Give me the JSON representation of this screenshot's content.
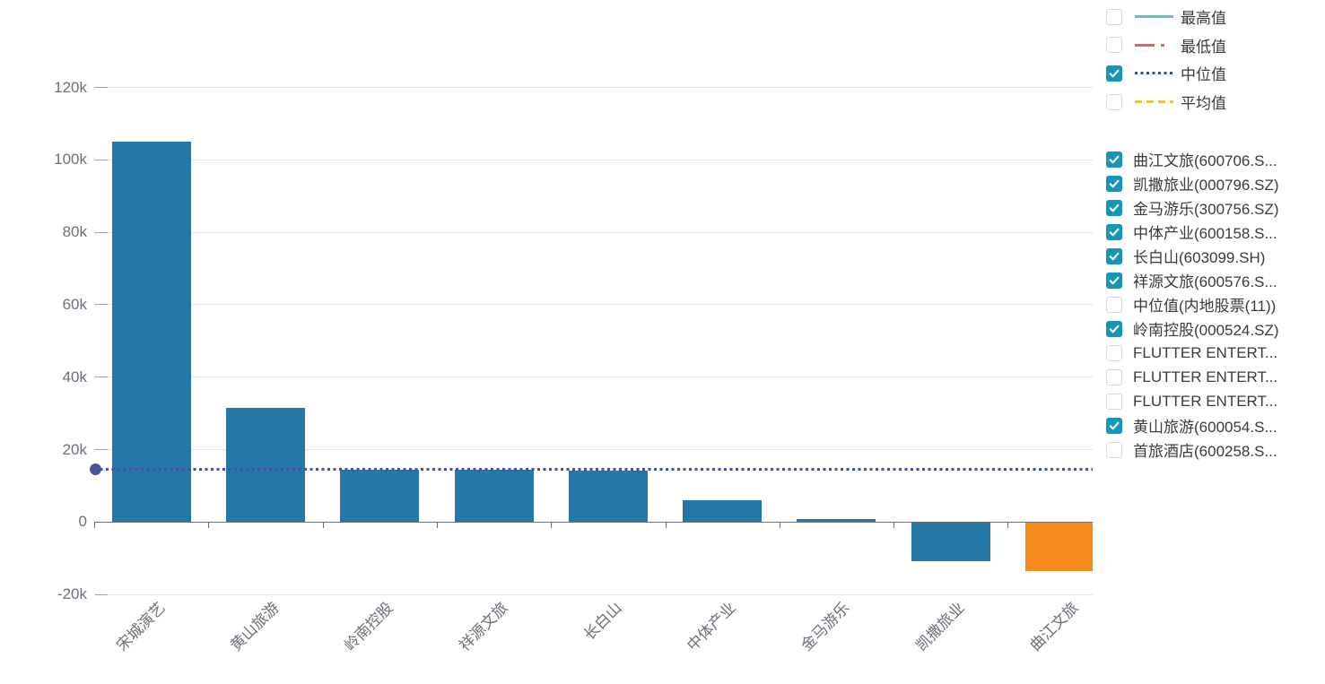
{
  "colors": {
    "bar_blue": "#2577a8",
    "bar_orange": "#f68a1d",
    "median_line": "#4a4f9c",
    "median_dot": "#4a5596",
    "grid_line": "#e0e6f1",
    "axis_line": "#6E7079",
    "ytick_mark": "#9aa0ab",
    "axis_label": "#6E7079",
    "legend_text": "#3a3a3a",
    "checkbox_checked": "#1496b6",
    "checkbox_border": "#d9d9d9"
  },
  "chart_data": {
    "type": "bar",
    "categories": [
      "宋城演艺",
      "黄山旅游",
      "岭南控股",
      "祥源文旅",
      "长白山",
      "中体产业",
      "金马游乐",
      "凯撒旅业",
      "曲江文旅"
    ],
    "values": [
      105000,
      31500,
      14300,
      14200,
      14000,
      6000,
      800,
      -10600,
      -13500
    ],
    "bar_default_color": "#2577a8",
    "bar_color_overrides": {
      "8": "#f68a1d"
    },
    "reference_lines": [
      {
        "name": "中位值",
        "value": 14500,
        "style": "dotted",
        "color": "#4a4f9c",
        "start_dot": true
      }
    ],
    "y_axis": {
      "tick_labels": [
        "120k",
        "100k",
        "80k",
        "60k",
        "40k",
        "20k",
        "0",
        "-20k"
      ],
      "tick_values": [
        120000,
        100000,
        80000,
        60000,
        40000,
        20000,
        0,
        -20000
      ],
      "range": [
        -20000,
        120000
      ]
    },
    "x_label_rotation": -45,
    "grid": true,
    "legend_position": "right"
  },
  "legend_stats": {
    "items": [
      {
        "label": "最高值",
        "checked": false,
        "line_style": "solid",
        "color": "#5fc5c1"
      },
      {
        "label": "最低值",
        "checked": false,
        "line_style": "dashdot",
        "color": "#e2615e"
      },
      {
        "label": "中位值",
        "checked": true,
        "line_style": "dotted",
        "color": "#3d4a9a"
      },
      {
        "label": "平均值",
        "checked": false,
        "line_style": "dashed",
        "color": "#eac63c"
      }
    ]
  },
  "legend_series": {
    "items": [
      {
        "label": "曲江文旅(600706.S...",
        "checked": true
      },
      {
        "label": "凯撒旅业(000796.SZ)",
        "checked": true
      },
      {
        "label": "金马游乐(300756.SZ)",
        "checked": true
      },
      {
        "label": "中体产业(600158.S...",
        "checked": true
      },
      {
        "label": "长白山(603099.SH)",
        "checked": true
      },
      {
        "label": "祥源文旅(600576.S...",
        "checked": true
      },
      {
        "label": "中位值(内地股票(11))",
        "checked": false
      },
      {
        "label": "岭南控股(000524.SZ)",
        "checked": true
      },
      {
        "label": "FLUTTER ENTERT...",
        "checked": false
      },
      {
        "label": "FLUTTER ENTERT...",
        "checked": false
      },
      {
        "label": "FLUTTER ENTERT...",
        "checked": false
      },
      {
        "label": "黄山旅游(600054.S...",
        "checked": true
      },
      {
        "label": "首旅酒店(600258.S...",
        "checked": false
      }
    ]
  }
}
